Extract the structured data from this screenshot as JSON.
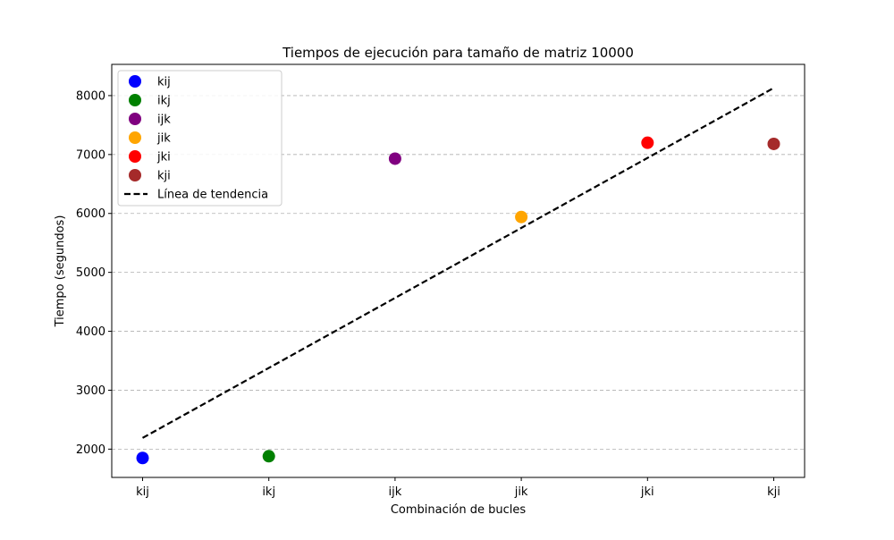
{
  "chart_data": {
    "type": "scatter",
    "title": "Tiempos de ejecución para tamaño de matriz 10000",
    "xlabel": "Combinación de bucles",
    "ylabel": "Tiempo (segundos)",
    "categories": [
      "kij",
      "ikj",
      "ijk",
      "jik",
      "jki",
      "kji"
    ],
    "ylim": [
      1520,
      8530
    ],
    "yticks": [
      2000,
      3000,
      4000,
      5000,
      6000,
      7000,
      8000
    ],
    "y_grid": true,
    "legend_position": "top-left",
    "series": [
      {
        "name": "kij",
        "color": "#0000ff",
        "points": [
          {
            "x": "kij",
            "y": 1850
          }
        ]
      },
      {
        "name": "ikj",
        "color": "#008000",
        "points": [
          {
            "x": "ikj",
            "y": 1880
          }
        ]
      },
      {
        "name": "ijk",
        "color": "#800080",
        "points": [
          {
            "x": "ijk",
            "y": 6930
          }
        ]
      },
      {
        "name": "jik",
        "color": "#ffa500",
        "points": [
          {
            "x": "jik",
            "y": 5940
          }
        ]
      },
      {
        "name": "jki",
        "color": "#ff0000",
        "points": [
          {
            "x": "jki",
            "y": 7200
          }
        ]
      },
      {
        "name": "kji",
        "color": "#a52a2a",
        "points": [
          {
            "x": "kji",
            "y": 7180
          }
        ]
      }
    ],
    "trendline": {
      "name": "Línea de tendencia",
      "color": "#000000",
      "style": "dashed",
      "start": {
        "x": "kij",
        "y": 2190
      },
      "end": {
        "x": "kji",
        "y": 8130
      }
    }
  }
}
